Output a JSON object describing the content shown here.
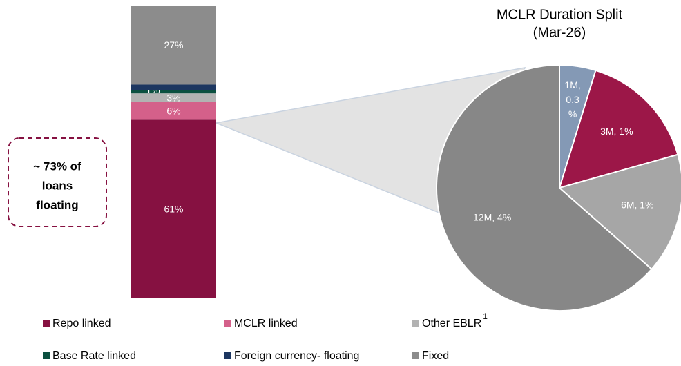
{
  "chart_data": [
    {
      "type": "stacked_bar",
      "series": [
        {
          "name": "Repo linked",
          "color": "#861141",
          "values": [
            61
          ],
          "value_labels": [
            "61%"
          ]
        },
        {
          "name": "MCLR linked",
          "color": "#d4608a",
          "values": [
            6
          ],
          "value_labels": [
            "6%"
          ]
        },
        {
          "name": "Other EBLR",
          "superscript": "1",
          "color": "#b2b2b2",
          "values": [
            3
          ],
          "value_labels": [
            "3%"
          ]
        },
        {
          "name": "Base Rate linked",
          "color": "#0b5040",
          "values": [
            1
          ],
          "value_labels": [
            "1%"
          ]
        },
        {
          "name": "Foreign currency- floating",
          "color": "#1c3660",
          "values": [
            2
          ],
          "value_labels": [
            "2%"
          ]
        },
        {
          "name": "Fixed",
          "color": "#8c8c8c",
          "values": [
            27
          ],
          "value_labels": [
            "27%"
          ]
        }
      ],
      "annotation": [
        "~ 73% of",
        "loans",
        "floating"
      ]
    },
    {
      "type": "pie",
      "title": "MCLR Duration Split",
      "subtitle": "(Mar-26)",
      "values": [
        0.3,
        1,
        1,
        4
      ],
      "value_labels": [
        [
          "1M,",
          "0.3",
          "%"
        ],
        [
          "3M, 1%"
        ],
        [
          "6M, 1%"
        ],
        [
          "12M, 4%"
        ]
      ],
      "colors": [
        "#8499b5",
        "#9c1748",
        "#a6a6a6",
        "#878787"
      ]
    }
  ]
}
